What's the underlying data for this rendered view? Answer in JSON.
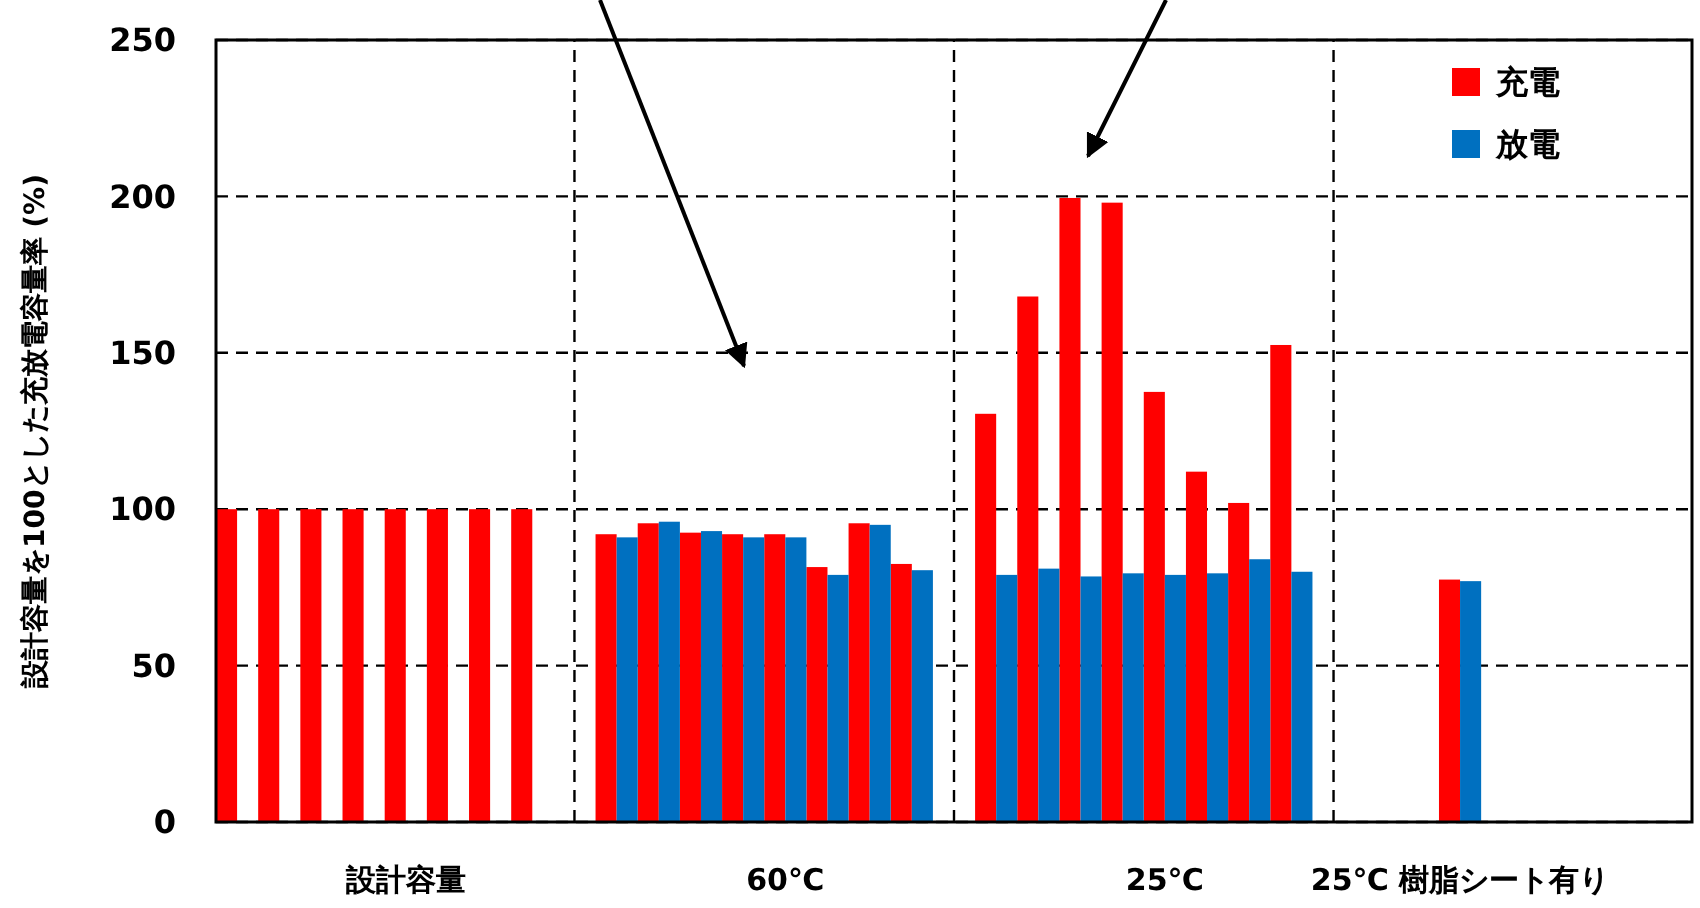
{
  "chart_data": {
    "type": "bar",
    "ylabel": "設計容量を100とした充放電容量率 (%)",
    "categories": [
      null,
      null,
      null,
      null,
      "設計容量",
      null,
      null,
      null,
      null,
      null,
      null,
      null,
      null,
      "60℃",
      null,
      null,
      null,
      null,
      null,
      null,
      null,
      null,
      "25℃",
      null,
      null,
      null,
      null,
      null,
      null,
      "25℃ 樹脂シート有り",
      null,
      null,
      null,
      null,
      null
    ],
    "series": [
      {
        "name": "充電",
        "color": "#ff0000",
        "values": [
          100,
          100,
          100,
          100,
          100,
          100,
          100,
          100,
          null,
          92,
          95.5,
          92.5,
          92,
          92,
          81.5,
          95.5,
          82.5,
          null,
          130.5,
          168,
          199.5,
          198,
          137.5,
          112,
          102,
          152.5,
          null,
          null,
          null,
          77.5,
          null,
          null,
          null,
          null,
          null
        ]
      },
      {
        "name": "放電",
        "color": "#0070c0",
        "values": [
          null,
          null,
          null,
          null,
          null,
          null,
          null,
          null,
          null,
          91,
          96,
          93,
          91,
          91,
          79,
          95,
          80.5,
          null,
          79,
          81,
          78.5,
          79.5,
          79,
          79.5,
          84,
          80,
          null,
          null,
          null,
          77,
          null,
          null,
          null,
          null,
          null
        ]
      }
    ],
    "ylim": [
      0,
      250
    ],
    "yticks": [
      0,
      50,
      100,
      150,
      200,
      250
    ],
    "grid": true,
    "line_style": "dashed",
    "legend": "top right"
  }
}
